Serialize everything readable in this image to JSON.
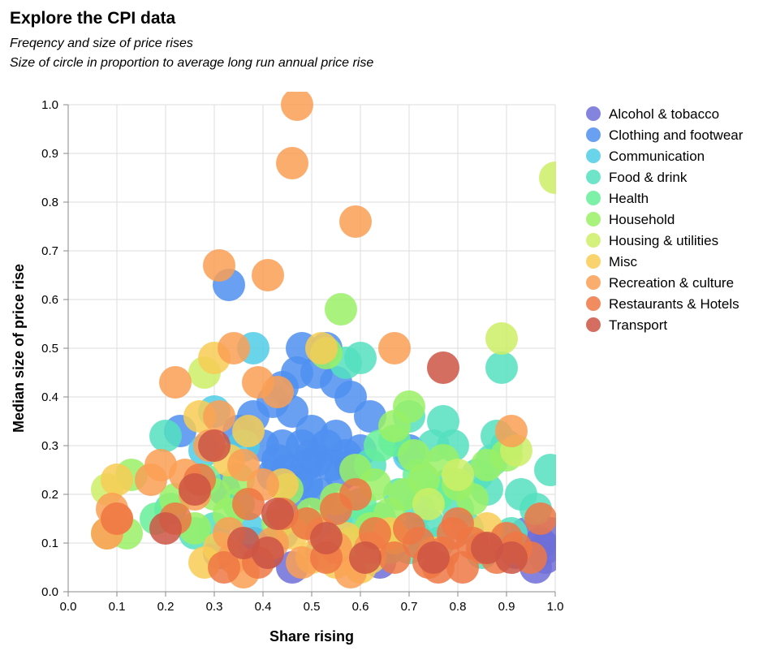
{
  "chart_data": {
    "type": "scatter",
    "title": "Explore the CPI data",
    "subtitle": [
      "Freqency and size of price rises",
      "Size of circle in proportion to average long run annual price rise"
    ],
    "xlabel": "Share rising",
    "ylabel": "Median size of price rise",
    "xlim": [
      0,
      1
    ],
    "ylim": [
      0,
      1
    ],
    "x_ticks": [
      "0.0",
      "0.1",
      "0.2",
      "0.3",
      "0.4",
      "0.5",
      "0.6",
      "0.7",
      "0.8",
      "0.9",
      "1.0"
    ],
    "y_ticks": [
      "0.0",
      "0.1",
      "0.2",
      "0.3",
      "0.4",
      "0.5",
      "0.6",
      "0.7",
      "0.8",
      "0.9",
      "1.0"
    ],
    "grid": true,
    "legend_position": "right",
    "series": [
      {
        "name": "Alcohol & tobacco",
        "color": "#6f6fd8",
        "points": [
          [
            0.99,
            0.12
          ],
          [
            0.98,
            0.07
          ],
          [
            0.97,
            0.1
          ],
          [
            0.96,
            0.05
          ],
          [
            0.94,
            0.12
          ],
          [
            0.92,
            0.08
          ],
          [
            0.41,
            0.08
          ],
          [
            0.46,
            0.05
          ],
          [
            0.31,
            0.08
          ],
          [
            0.64,
            0.06
          ],
          [
            0.53,
            0.1
          ],
          [
            0.44,
            0.12
          ],
          [
            0.52,
            0.08
          ],
          [
            0.38,
            0.1
          ],
          [
            0.66,
            0.09
          ],
          [
            0.98,
            0.09
          ]
        ]
      },
      {
        "name": "Clothing and footwear",
        "color": "#4f8ff0",
        "points": [
          [
            0.33,
            0.63
          ],
          [
            0.48,
            0.5
          ],
          [
            0.53,
            0.5
          ],
          [
            0.47,
            0.45
          ],
          [
            0.51,
            0.45
          ],
          [
            0.55,
            0.43
          ],
          [
            0.58,
            0.4
          ],
          [
            0.62,
            0.36
          ],
          [
            0.44,
            0.42
          ],
          [
            0.46,
            0.37
          ],
          [
            0.4,
            0.3
          ],
          [
            0.43,
            0.27
          ],
          [
            0.45,
            0.25
          ],
          [
            0.47,
            0.23
          ],
          [
            0.49,
            0.22
          ],
          [
            0.51,
            0.27
          ],
          [
            0.53,
            0.3
          ],
          [
            0.55,
            0.32
          ],
          [
            0.57,
            0.28
          ],
          [
            0.59,
            0.25
          ],
          [
            0.48,
            0.3
          ],
          [
            0.5,
            0.33
          ],
          [
            0.52,
            0.2
          ],
          [
            0.46,
            0.18
          ],
          [
            0.44,
            0.3
          ],
          [
            0.56,
            0.24
          ],
          [
            0.54,
            0.26
          ],
          [
            0.49,
            0.26
          ],
          [
            0.42,
            0.24
          ],
          [
            0.6,
            0.29
          ],
          [
            0.35,
            0.33
          ],
          [
            0.23,
            0.33
          ],
          [
            0.32,
            0.21
          ],
          [
            0.7,
            0.29
          ],
          [
            0.42,
            0.39
          ],
          [
            0.38,
            0.36
          ],
          [
            0.58,
            0.26
          ],
          [
            0.5,
            0.28
          ]
        ]
      },
      {
        "name": "Communication",
        "color": "#50cce6",
        "points": [
          [
            0.38,
            0.5
          ],
          [
            0.3,
            0.37
          ],
          [
            0.28,
            0.29
          ],
          [
            0.36,
            0.3
          ],
          [
            0.55,
            0.15
          ],
          [
            0.7,
            0.28
          ],
          [
            0.37,
            0.13
          ]
        ]
      },
      {
        "name": "Food & drink",
        "color": "#55e0c0",
        "points": [
          [
            0.89,
            0.46
          ],
          [
            0.77,
            0.35
          ],
          [
            0.6,
            0.48
          ],
          [
            0.57,
            0.47
          ],
          [
            0.2,
            0.32
          ],
          [
            0.21,
            0.17
          ],
          [
            0.26,
            0.12
          ],
          [
            0.3,
            0.13
          ],
          [
            0.68,
            0.2
          ],
          [
            0.72,
            0.17
          ],
          [
            0.75,
            0.3
          ],
          [
            0.78,
            0.22
          ],
          [
            0.8,
            0.17
          ],
          [
            0.84,
            0.24
          ],
          [
            0.86,
            0.21
          ],
          [
            0.88,
            0.32
          ],
          [
            0.93,
            0.2
          ],
          [
            0.99,
            0.25
          ],
          [
            0.91,
            0.12
          ],
          [
            0.64,
            0.15
          ],
          [
            0.66,
            0.09
          ],
          [
            0.7,
            0.09
          ],
          [
            0.74,
            0.14
          ],
          [
            0.76,
            0.1
          ],
          [
            0.6,
            0.15
          ],
          [
            0.82,
            0.13
          ],
          [
            0.85,
            0.08
          ],
          [
            0.87,
            0.27
          ],
          [
            0.7,
            0.36
          ],
          [
            0.79,
            0.3
          ],
          [
            0.9,
            0.3
          ],
          [
            0.96,
            0.17
          ],
          [
            0.71,
            0.12
          ],
          [
            0.62,
            0.26
          ]
        ]
      },
      {
        "name": "Health",
        "color": "#66ee99",
        "points": [
          [
            0.18,
            0.15
          ],
          [
            0.28,
            0.23
          ],
          [
            0.64,
            0.3
          ],
          [
            0.72,
            0.24
          ],
          [
            0.76,
            0.2
          ],
          [
            0.6,
            0.18
          ],
          [
            0.35,
            0.18
          ],
          [
            0.67,
            0.31
          ],
          [
            0.49,
            0.14
          ]
        ]
      },
      {
        "name": "Household",
        "color": "#99f066",
        "points": [
          [
            0.56,
            0.58
          ],
          [
            0.53,
            0.49
          ],
          [
            0.7,
            0.38
          ],
          [
            0.67,
            0.34
          ],
          [
            0.13,
            0.24
          ],
          [
            0.12,
            0.12
          ],
          [
            0.22,
            0.19
          ],
          [
            0.26,
            0.13
          ],
          [
            0.3,
            0.2
          ],
          [
            0.35,
            0.23
          ],
          [
            0.45,
            0.21
          ],
          [
            0.5,
            0.16
          ],
          [
            0.55,
            0.19
          ],
          [
            0.59,
            0.25
          ],
          [
            0.63,
            0.22
          ],
          [
            0.66,
            0.16
          ],
          [
            0.69,
            0.2
          ],
          [
            0.73,
            0.23
          ],
          [
            0.77,
            0.27
          ],
          [
            0.8,
            0.22
          ],
          [
            0.83,
            0.19
          ],
          [
            0.86,
            0.26
          ],
          [
            0.9,
            0.28
          ],
          [
            0.62,
            0.13
          ],
          [
            0.71,
            0.28
          ],
          [
            0.58,
            0.1
          ],
          [
            0.43,
            0.14
          ],
          [
            0.33,
            0.16
          ]
        ]
      },
      {
        "name": "Housing & utilities",
        "color": "#ccee66",
        "points": [
          [
            1.0,
            0.85
          ],
          [
            0.89,
            0.52
          ],
          [
            0.08,
            0.21
          ],
          [
            0.08,
            0.12
          ],
          [
            0.28,
            0.45
          ],
          [
            0.92,
            0.29
          ],
          [
            0.8,
            0.24
          ],
          [
            0.67,
            0.11
          ],
          [
            0.74,
            0.18
          ]
        ]
      },
      {
        "name": "Misc",
        "color": "#f8cc55",
        "points": [
          [
            0.3,
            0.48
          ],
          [
            0.52,
            0.5
          ],
          [
            0.46,
            0.12
          ],
          [
            0.62,
            0.07
          ],
          [
            0.1,
            0.23
          ],
          [
            0.27,
            0.36
          ],
          [
            0.33,
            0.27
          ],
          [
            0.37,
            0.33
          ],
          [
            0.55,
            0.06
          ],
          [
            0.6,
            0.05
          ],
          [
            0.66,
            0.12
          ],
          [
            0.75,
            0.08
          ],
          [
            0.86,
            0.13
          ],
          [
            0.44,
            0.22
          ],
          [
            0.31,
            0.09
          ],
          [
            0.5,
            0.07
          ],
          [
            0.57,
            0.11
          ],
          [
            0.28,
            0.06
          ]
        ]
      },
      {
        "name": "Recreation & culture",
        "color": "#fa9f55",
        "points": [
          [
            0.47,
            1.0
          ],
          [
            0.46,
            0.88
          ],
          [
            0.59,
            0.76
          ],
          [
            0.31,
            0.67
          ],
          [
            0.41,
            0.65
          ],
          [
            0.67,
            0.5
          ],
          [
            0.34,
            0.5
          ],
          [
            0.22,
            0.43
          ],
          [
            0.91,
            0.33
          ],
          [
            0.39,
            0.43
          ],
          [
            0.43,
            0.41
          ],
          [
            0.31,
            0.36
          ],
          [
            0.19,
            0.26
          ],
          [
            0.24,
            0.24
          ],
          [
            0.17,
            0.23
          ],
          [
            0.09,
            0.17
          ],
          [
            0.1,
            0.15
          ],
          [
            0.08,
            0.12
          ],
          [
            0.29,
            0.3
          ],
          [
            0.36,
            0.26
          ],
          [
            0.4,
            0.22
          ],
          [
            0.33,
            0.12
          ],
          [
            0.36,
            0.04
          ],
          [
            0.42,
            0.1
          ],
          [
            0.48,
            0.06
          ],
          [
            0.52,
            0.12
          ],
          [
            0.58,
            0.04
          ],
          [
            0.62,
            0.09
          ],
          [
            0.34,
            0.07
          ],
          [
            0.26,
            0.2
          ],
          [
            0.55,
            0.09
          ]
        ]
      },
      {
        "name": "Restaurants & Hotels",
        "color": "#ee7744",
        "points": [
          [
            0.1,
            0.15
          ],
          [
            0.22,
            0.15
          ],
          [
            0.27,
            0.23
          ],
          [
            0.37,
            0.18
          ],
          [
            0.44,
            0.16
          ],
          [
            0.49,
            0.14
          ],
          [
            0.55,
            0.17
          ],
          [
            0.59,
            0.2
          ],
          [
            0.63,
            0.12
          ],
          [
            0.67,
            0.07
          ],
          [
            0.72,
            0.1
          ],
          [
            0.74,
            0.06
          ],
          [
            0.77,
            0.08
          ],
          [
            0.79,
            0.12
          ],
          [
            0.81,
            0.05
          ],
          [
            0.83,
            0.1
          ],
          [
            0.85,
            0.09
          ],
          [
            0.88,
            0.07
          ],
          [
            0.9,
            0.11
          ],
          [
            0.92,
            0.09
          ],
          [
            0.95,
            0.07
          ],
          [
            0.97,
            0.15
          ],
          [
            0.76,
            0.05
          ],
          [
            0.7,
            0.13
          ],
          [
            0.53,
            0.07
          ],
          [
            0.32,
            0.05
          ],
          [
            0.39,
            0.06
          ],
          [
            0.8,
            0.14
          ]
        ]
      },
      {
        "name": "Transport",
        "color": "#cc5544",
        "points": [
          [
            0.77,
            0.46
          ],
          [
            0.2,
            0.13
          ],
          [
            0.26,
            0.21
          ],
          [
            0.3,
            0.3
          ],
          [
            0.36,
            0.1
          ],
          [
            0.43,
            0.16
          ],
          [
            0.41,
            0.08
          ],
          [
            0.53,
            0.11
          ],
          [
            0.61,
            0.07
          ],
          [
            0.75,
            0.07
          ],
          [
            0.86,
            0.09
          ],
          [
            0.91,
            0.07
          ]
        ]
      }
    ]
  }
}
